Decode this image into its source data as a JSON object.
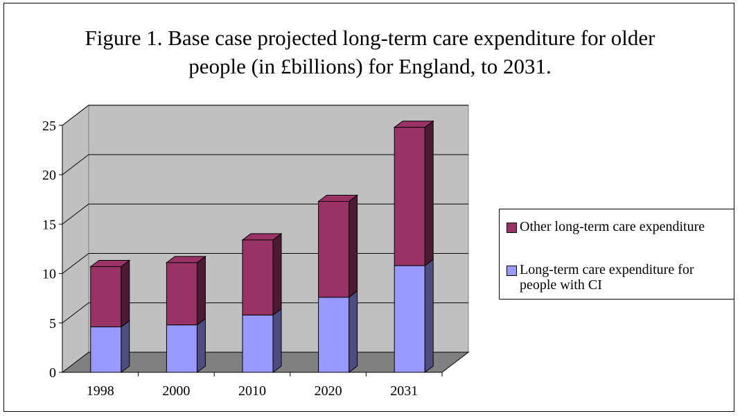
{
  "chart_data": {
    "type": "bar",
    "stacked": true,
    "three_d": true,
    "title_lines": [
      "Figure 1. Base case projected long-term care expenditure for older",
      "people (in £billions) for England, to 2031."
    ],
    "xlabel": "",
    "ylabel": "",
    "categories": [
      "1998",
      "2000",
      "2010",
      "2020",
      "2031"
    ],
    "y_ticks": [
      "0",
      "5",
      "10",
      "15",
      "20",
      "25"
    ],
    "ylim": [
      0,
      25
    ],
    "grid": true,
    "legend_position": "right",
    "series": [
      {
        "name": "Long-term care expenditure for people with CI",
        "color": "#9999FF",
        "side_color": "#4D4D80",
        "values": [
          4.6,
          4.8,
          5.8,
          7.6,
          10.8
        ]
      },
      {
        "name": "Other long-term care expenditure",
        "color": "#993366",
        "side_color": "#4D1A33",
        "values": [
          6.1,
          6.3,
          7.6,
          9.7,
          14.0
        ]
      }
    ]
  },
  "legend": {
    "items": [
      {
        "label": "Other long-term care expenditure",
        "color": "#993366"
      },
      {
        "label": "Long-term care expenditure for\npeople with CI",
        "color": "#9999FF"
      }
    ]
  }
}
